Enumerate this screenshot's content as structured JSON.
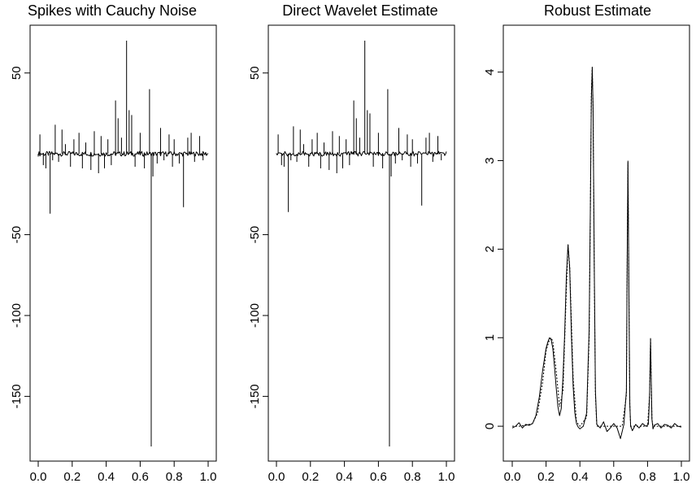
{
  "chart_data": [
    {
      "type": "line",
      "title": "Spikes with Cauchy Noise",
      "xlabel": "",
      "ylabel": "",
      "xlim": [
        0,
        1
      ],
      "ylim": [
        -182,
        71
      ],
      "x_ticks": [
        0.0,
        0.2,
        0.4,
        0.6,
        0.8,
        1.0
      ],
      "x_tick_labels": [
        "0.0",
        "0.2",
        "0.4",
        "0.6",
        "0.8",
        "1.0"
      ],
      "y_ticks": [
        50,
        -50,
        -100,
        -150
      ],
      "y_tick_labels": [
        "50",
        "-50",
        "-100",
        "-150"
      ],
      "y_tick_rotated": true,
      "baseline": 0,
      "spikes": [
        {
          "x": 0.01,
          "y": 12
        },
        {
          "x": 0.03,
          "y": -7
        },
        {
          "x": 0.045,
          "y": -9
        },
        {
          "x": 0.07,
          "y": -37
        },
        {
          "x": 0.085,
          "y": -4
        },
        {
          "x": 0.1,
          "y": 18
        },
        {
          "x": 0.12,
          "y": -5
        },
        {
          "x": 0.14,
          "y": 15
        },
        {
          "x": 0.16,
          "y": 6
        },
        {
          "x": 0.19,
          "y": -8
        },
        {
          "x": 0.21,
          "y": 9
        },
        {
          "x": 0.24,
          "y": 13
        },
        {
          "x": 0.26,
          "y": -9
        },
        {
          "x": 0.28,
          "y": 7
        },
        {
          "x": 0.31,
          "y": -10
        },
        {
          "x": 0.33,
          "y": 14
        },
        {
          "x": 0.355,
          "y": -12
        },
        {
          "x": 0.37,
          "y": 11
        },
        {
          "x": 0.39,
          "y": -9
        },
        {
          "x": 0.41,
          "y": 9
        },
        {
          "x": 0.43,
          "y": -7
        },
        {
          "x": 0.455,
          "y": 33
        },
        {
          "x": 0.47,
          "y": 22
        },
        {
          "x": 0.49,
          "y": 10
        },
        {
          "x": 0.52,
          "y": 70
        },
        {
          "x": 0.535,
          "y": 27
        },
        {
          "x": 0.55,
          "y": 24
        },
        {
          "x": 0.57,
          "y": -8
        },
        {
          "x": 0.6,
          "y": 13
        },
        {
          "x": 0.625,
          "y": -9
        },
        {
          "x": 0.655,
          "y": 40
        },
        {
          "x": 0.665,
          "y": -181
        },
        {
          "x": 0.675,
          "y": -14
        },
        {
          "x": 0.7,
          "y": -6
        },
        {
          "x": 0.72,
          "y": 16
        },
        {
          "x": 0.74,
          "y": -4
        },
        {
          "x": 0.77,
          "y": 12
        },
        {
          "x": 0.79,
          "y": -8
        },
        {
          "x": 0.8,
          "y": 9
        },
        {
          "x": 0.83,
          "y": -6
        },
        {
          "x": 0.855,
          "y": -33
        },
        {
          "x": 0.88,
          "y": 10
        },
        {
          "x": 0.9,
          "y": 13
        },
        {
          "x": 0.92,
          "y": -5
        },
        {
          "x": 0.95,
          "y": 11
        },
        {
          "x": 0.97,
          "y": -4
        }
      ]
    },
    {
      "type": "line",
      "title": "Direct Wavelet Estimate",
      "xlabel": "",
      "ylabel": "",
      "xlim": [
        0,
        1
      ],
      "ylim": [
        -182,
        71
      ],
      "x_ticks": [
        0.0,
        0.2,
        0.4,
        0.6,
        0.8,
        1.0
      ],
      "x_tick_labels": [
        "0.0",
        "0.2",
        "0.4",
        "0.6",
        "0.8",
        "1.0"
      ],
      "y_ticks": [
        50,
        -50,
        -100,
        -150
      ],
      "y_tick_labels": [
        "50",
        "-50",
        "-100",
        "-150"
      ],
      "y_tick_rotated": true,
      "baseline": 0,
      "spikes": [
        {
          "x": 0.01,
          "y": 12
        },
        {
          "x": 0.03,
          "y": -7
        },
        {
          "x": 0.045,
          "y": -8
        },
        {
          "x": 0.07,
          "y": -36
        },
        {
          "x": 0.085,
          "y": -4
        },
        {
          "x": 0.1,
          "y": 17
        },
        {
          "x": 0.12,
          "y": -5
        },
        {
          "x": 0.14,
          "y": 15
        },
        {
          "x": 0.16,
          "y": 6
        },
        {
          "x": 0.19,
          "y": -8
        },
        {
          "x": 0.21,
          "y": 9
        },
        {
          "x": 0.24,
          "y": 13
        },
        {
          "x": 0.26,
          "y": -9
        },
        {
          "x": 0.28,
          "y": 7
        },
        {
          "x": 0.31,
          "y": -10
        },
        {
          "x": 0.33,
          "y": 14
        },
        {
          "x": 0.355,
          "y": -12
        },
        {
          "x": 0.37,
          "y": 11
        },
        {
          "x": 0.39,
          "y": -9
        },
        {
          "x": 0.41,
          "y": 9
        },
        {
          "x": 0.43,
          "y": -7
        },
        {
          "x": 0.455,
          "y": 33
        },
        {
          "x": 0.47,
          "y": 22
        },
        {
          "x": 0.49,
          "y": 10
        },
        {
          "x": 0.52,
          "y": 70
        },
        {
          "x": 0.535,
          "y": 27
        },
        {
          "x": 0.55,
          "y": 25
        },
        {
          "x": 0.57,
          "y": -8
        },
        {
          "x": 0.6,
          "y": 13
        },
        {
          "x": 0.625,
          "y": -9
        },
        {
          "x": 0.655,
          "y": 40
        },
        {
          "x": 0.665,
          "y": -181
        },
        {
          "x": 0.675,
          "y": -14
        },
        {
          "x": 0.7,
          "y": -6
        },
        {
          "x": 0.72,
          "y": 16
        },
        {
          "x": 0.74,
          "y": -4
        },
        {
          "x": 0.77,
          "y": 12
        },
        {
          "x": 0.79,
          "y": -8
        },
        {
          "x": 0.8,
          "y": 9
        },
        {
          "x": 0.83,
          "y": -6
        },
        {
          "x": 0.855,
          "y": -32
        },
        {
          "x": 0.88,
          "y": 10
        },
        {
          "x": 0.9,
          "y": 13
        },
        {
          "x": 0.92,
          "y": -5
        },
        {
          "x": 0.95,
          "y": 11
        },
        {
          "x": 0.97,
          "y": -4
        }
      ]
    },
    {
      "type": "line",
      "title": "Robust Estimate",
      "xlabel": "",
      "ylabel": "",
      "xlim": [
        0,
        1
      ],
      "ylim": [
        -0.1,
        4.3
      ],
      "x_ticks": [
        0.0,
        0.2,
        0.4,
        0.6,
        0.8,
        1.0
      ],
      "x_tick_labels": [
        "0.0",
        "0.2",
        "0.4",
        "0.6",
        "0.8",
        "1.0"
      ],
      "y_ticks": [
        0,
        1,
        2,
        3,
        4
      ],
      "y_tick_labels": [
        "0",
        "1",
        "2",
        "3",
        "4"
      ],
      "y_tick_rotated": true,
      "series": [
        {
          "style": "solid",
          "x": [
            0.0,
            0.02,
            0.04,
            0.06,
            0.08,
            0.1,
            0.12,
            0.14,
            0.16,
            0.18,
            0.2,
            0.21,
            0.22,
            0.23,
            0.24,
            0.25,
            0.26,
            0.27,
            0.28,
            0.29,
            0.3,
            0.31,
            0.32,
            0.33,
            0.34,
            0.35,
            0.36,
            0.37,
            0.38,
            0.39,
            0.4,
            0.42,
            0.44,
            0.455,
            0.462,
            0.468,
            0.473,
            0.478,
            0.485,
            0.492,
            0.5,
            0.52,
            0.54,
            0.56,
            0.58,
            0.6,
            0.62,
            0.64,
            0.66,
            0.675,
            0.68,
            0.684,
            0.69,
            0.695,
            0.7,
            0.71,
            0.73,
            0.75,
            0.77,
            0.79,
            0.805,
            0.812,
            0.818,
            0.822,
            0.826,
            0.832,
            0.84,
            0.86,
            0.88,
            0.9,
            0.92,
            0.94,
            0.96,
            0.98,
            1.0
          ],
          "y": [
            -0.02,
            0.0,
            0.04,
            -0.02,
            0.02,
            0.01,
            0.03,
            0.12,
            0.33,
            0.63,
            0.88,
            0.95,
            1.0,
            0.98,
            0.88,
            0.67,
            0.43,
            0.22,
            0.12,
            0.2,
            0.55,
            1.05,
            1.7,
            2.05,
            1.78,
            1.02,
            0.45,
            0.15,
            0.03,
            -0.01,
            -0.03,
            0.0,
            0.15,
            1.1,
            2.5,
            3.7,
            4.05,
            3.6,
            1.8,
            0.4,
            0.02,
            -0.02,
            0.05,
            -0.06,
            -0.02,
            0.03,
            -0.02,
            -0.14,
            0.02,
            0.4,
            1.9,
            2.98,
            1.5,
            0.25,
            0.0,
            -0.05,
            0.02,
            -0.02,
            0.03,
            0.0,
            0.02,
            0.35,
            0.98,
            0.5,
            0.08,
            -0.03,
            0.01,
            0.03,
            -0.02,
            0.02,
            0.01,
            -0.02,
            0.03,
            0.0,
            -0.01
          ]
        },
        {
          "style": "dotted",
          "x": [
            0.0,
            0.04,
            0.08,
            0.12,
            0.15,
            0.18,
            0.2,
            0.22,
            0.23,
            0.24,
            0.26,
            0.28,
            0.3,
            0.32,
            0.33,
            0.34,
            0.36,
            0.38,
            0.4,
            0.44,
            0.455,
            0.462,
            0.468,
            0.473,
            0.478,
            0.485,
            0.492,
            0.5,
            0.55,
            0.6,
            0.65,
            0.675,
            0.68,
            0.684,
            0.69,
            0.695,
            0.7,
            0.75,
            0.8,
            0.812,
            0.818,
            0.822,
            0.826,
            0.832,
            0.84,
            0.9,
            1.0
          ],
          "y": [
            0.0,
            0.0,
            0.01,
            0.03,
            0.15,
            0.5,
            0.85,
            0.98,
            1.0,
            0.96,
            0.62,
            0.22,
            0.4,
            1.55,
            2.05,
            1.8,
            0.55,
            0.05,
            0.0,
            0.1,
            1.0,
            2.45,
            3.75,
            4.06,
            3.6,
            1.7,
            0.35,
            0.0,
            0.0,
            0.0,
            0.0,
            0.35,
            1.9,
            3.0,
            1.5,
            0.25,
            0.0,
            0.0,
            0.0,
            0.35,
            1.0,
            0.5,
            0.08,
            0.0,
            0.0,
            0.0,
            0.0
          ]
        }
      ]
    }
  ]
}
